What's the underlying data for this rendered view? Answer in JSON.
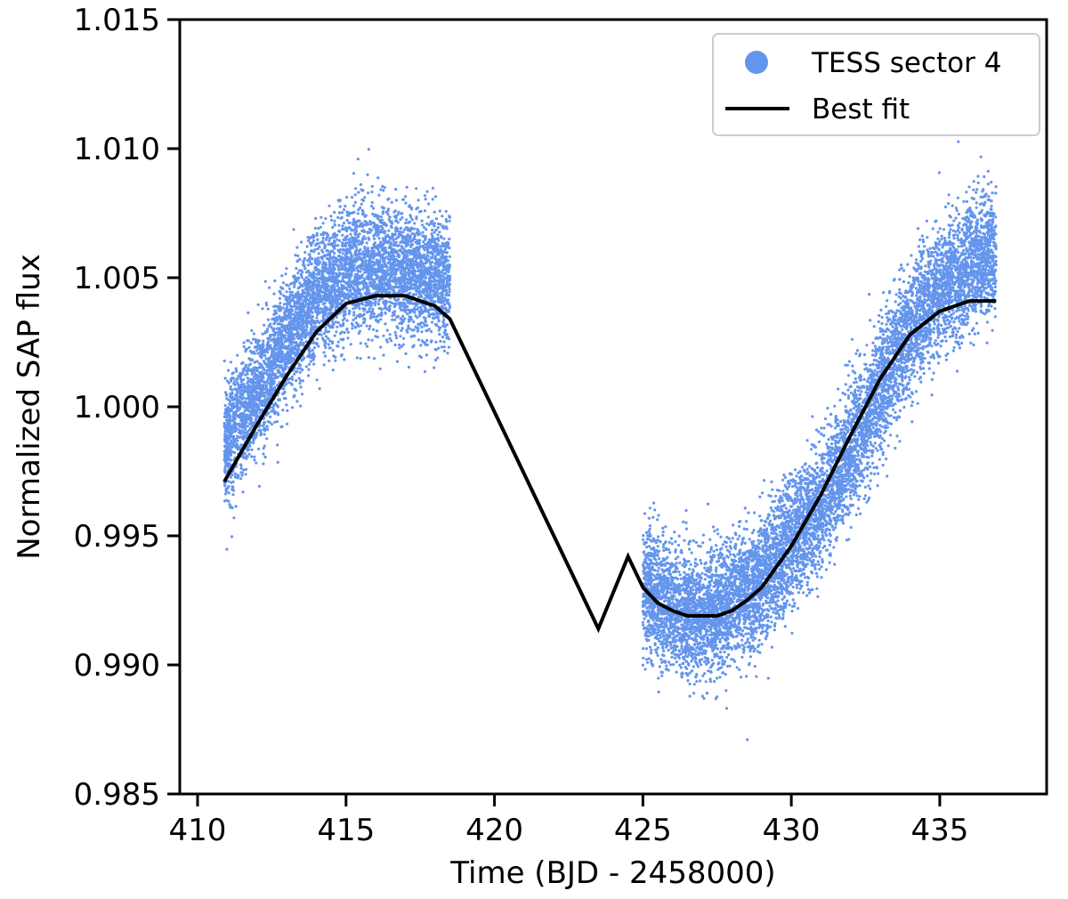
{
  "chart_data": {
    "type": "scatter",
    "title": "",
    "xlabel": "Time (BJD - 2458000)",
    "ylabel": "Normalized SAP flux",
    "xlim": [
      409.4,
      438.6
    ],
    "ylim": [
      0.985,
      1.015
    ],
    "xticks": [
      410,
      415,
      420,
      425,
      430,
      435
    ],
    "xtick_labels": [
      "410",
      "415",
      "420",
      "425",
      "430",
      "435"
    ],
    "yticks": [
      0.985,
      0.99,
      0.995,
      1.0,
      1.005,
      1.01,
      1.015
    ],
    "ytick_labels": [
      "0.985",
      "0.990",
      "0.995",
      "1.000",
      "1.005",
      "1.010",
      "1.015"
    ],
    "grid": false,
    "legend_position": "top-right",
    "series": [
      {
        "name": "TESS sector 4",
        "kind": "scatter",
        "color": "#6495ed",
        "segments": [
          {
            "x_start": 410.9,
            "x_end": 418.5
          },
          {
            "x_start": 425.0,
            "x_end": 436.9
          }
        ],
        "scatter_sigma": 0.0012,
        "trend_x": [
          410.9,
          412.0,
          413.0,
          414.0,
          415.0,
          416.0,
          417.0,
          418.0,
          418.5,
          425.0,
          426.0,
          427.0,
          428.0,
          429.0,
          430.0,
          431.0,
          432.0,
          433.0,
          434.0,
          435.0,
          436.0,
          436.9
        ],
        "trend_y": [
          0.9985,
          1.0005,
          1.0025,
          1.0042,
          1.0052,
          1.0055,
          1.0052,
          1.005,
          1.0048,
          0.993,
          0.9922,
          0.9918,
          0.9925,
          0.9932,
          0.9948,
          0.9962,
          0.9982,
          1.0008,
          1.003,
          1.0045,
          1.0055,
          1.006
        ]
      },
      {
        "name": "Best fit",
        "kind": "line",
        "color": "#000000",
        "x": [
          410.9,
          412.0,
          413.0,
          414.0,
          415.0,
          416.0,
          416.6,
          417.0,
          418.0,
          418.5,
          419.5,
          420.5,
          421.5,
          422.5,
          423.5,
          424.5,
          425.0,
          425.5,
          426.0,
          426.5,
          427.0,
          427.5,
          428.0,
          428.5,
          429.0,
          430.0,
          431.0,
          432.0,
          433.0,
          434.0,
          435.0,
          436.0,
          436.9
        ],
        "y": [
          0.9971,
          0.9993,
          1.0012,
          1.0029,
          1.004,
          1.0043,
          1.0043,
          1.0043,
          1.0039,
          1.0034,
          1.001,
          0.9986,
          0.9962,
          0.9938,
          0.9914,
          0.9942,
          0.993,
          0.9924,
          0.9921,
          0.9919,
          0.9919,
          0.9919,
          0.9921,
          0.9925,
          0.993,
          0.9946,
          0.9966,
          0.9989,
          1.0011,
          1.0028,
          1.0037,
          1.0041,
          1.0041
        ]
      }
    ]
  }
}
